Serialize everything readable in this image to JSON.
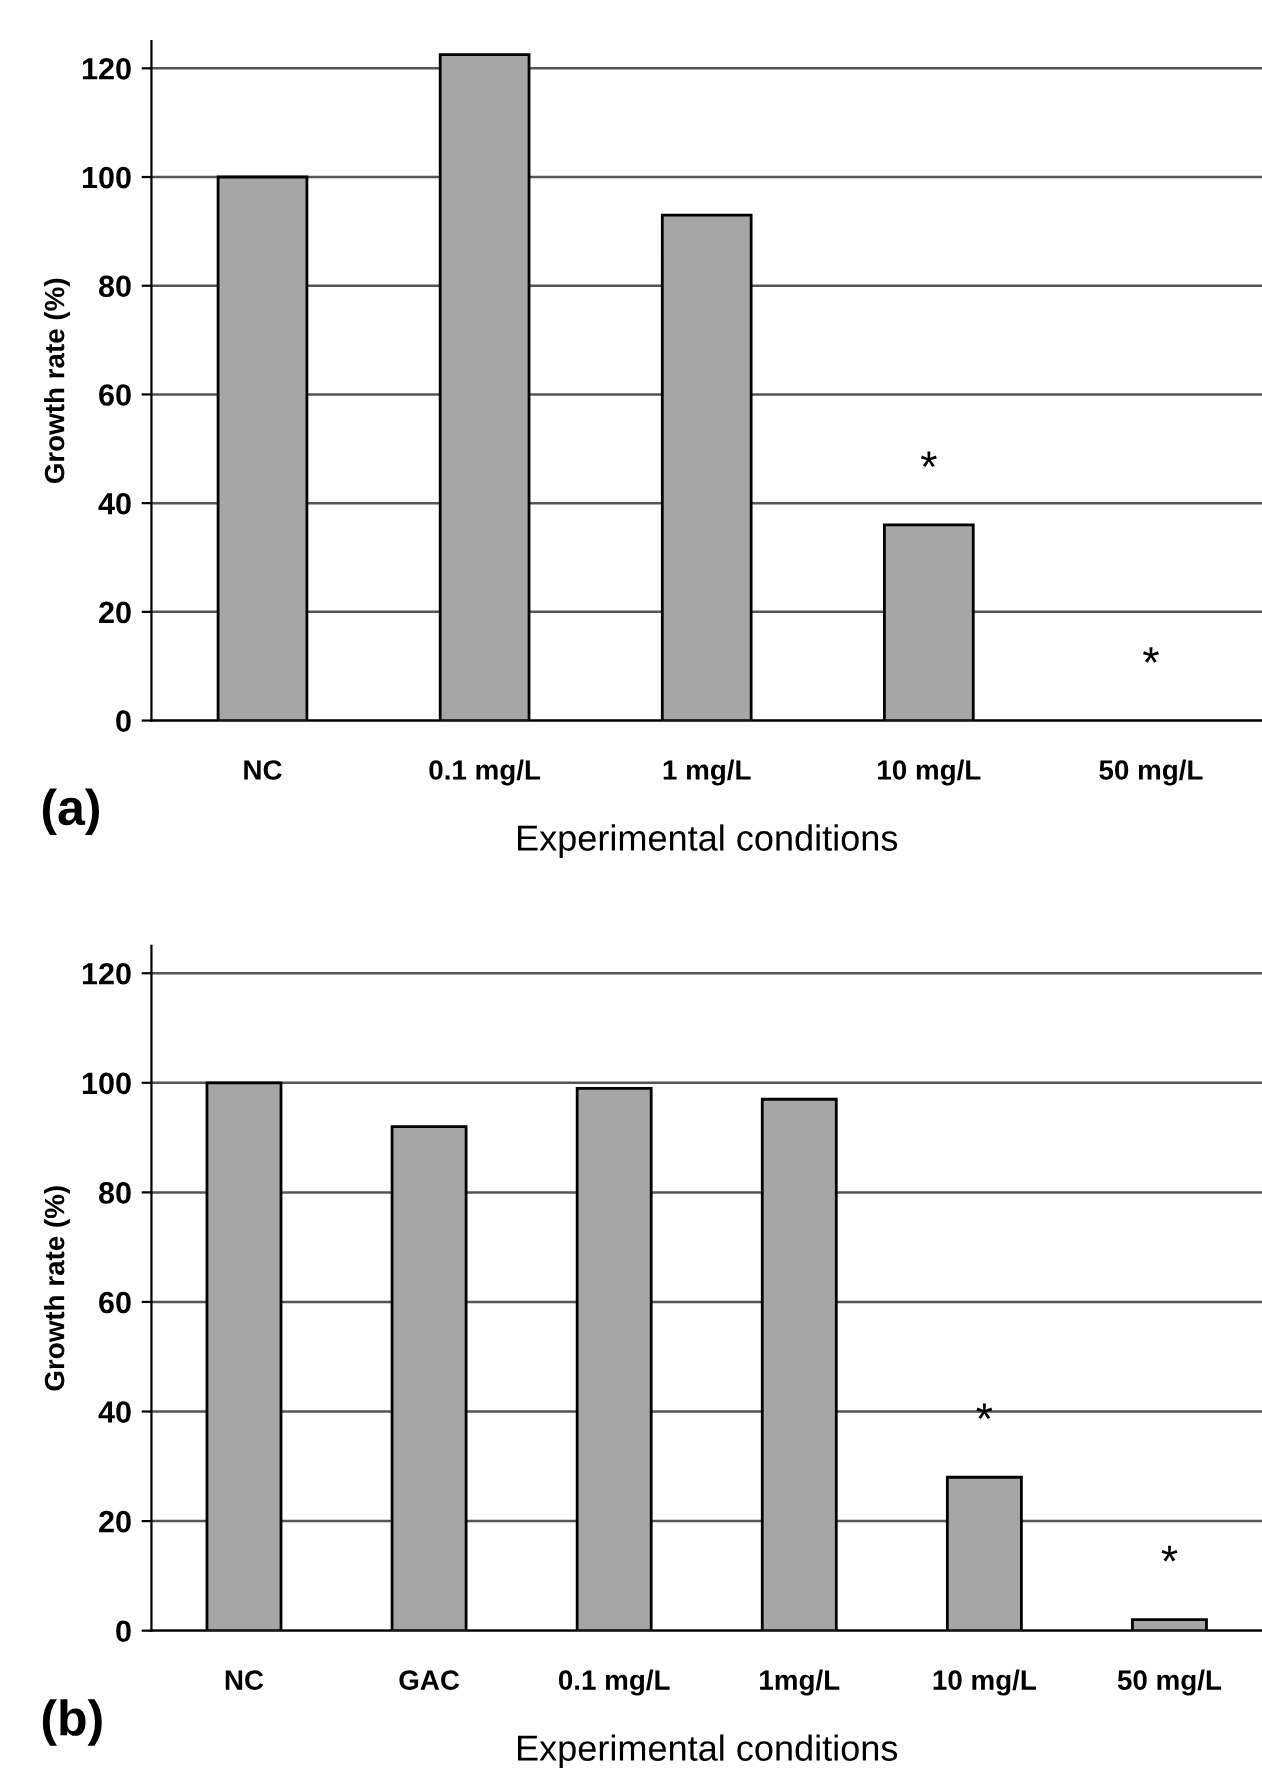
{
  "chart_data": [
    {
      "type": "bar",
      "categories": [
        "NC",
        "0.1 mg/L",
        "1 mg/L",
        "10 mg/L",
        "50 mg/L"
      ],
      "values": [
        100,
        122.5,
        93,
        36,
        0
      ],
      "color": "#a6a6a6",
      "ylabel": "Growth rate (%)",
      "xlabel": "Experimental conditions",
      "ylim": [
        0,
        125
      ],
      "yticks": [
        0,
        20,
        40,
        60,
        80,
        100,
        120
      ],
      "grid": "y",
      "annotations": [
        "(a)",
        "*",
        "*"
      ]
    },
    {
      "type": "bar",
      "categories": [
        "NC",
        "GAC",
        "0.1 mg/L",
        "1mg/L",
        "10 mg/L",
        "50 mg/L"
      ],
      "values": [
        100,
        92,
        99,
        97,
        28,
        2
      ],
      "color": "#a6a6a6",
      "ylabel": "Growth rate (%)",
      "xlabel": "Experimental conditions",
      "ylim": [
        0,
        125
      ],
      "yticks": [
        0,
        20,
        40,
        60,
        80,
        100,
        120
      ],
      "grid": "y",
      "annotations": [
        "(b)",
        "*",
        "*"
      ]
    }
  ]
}
